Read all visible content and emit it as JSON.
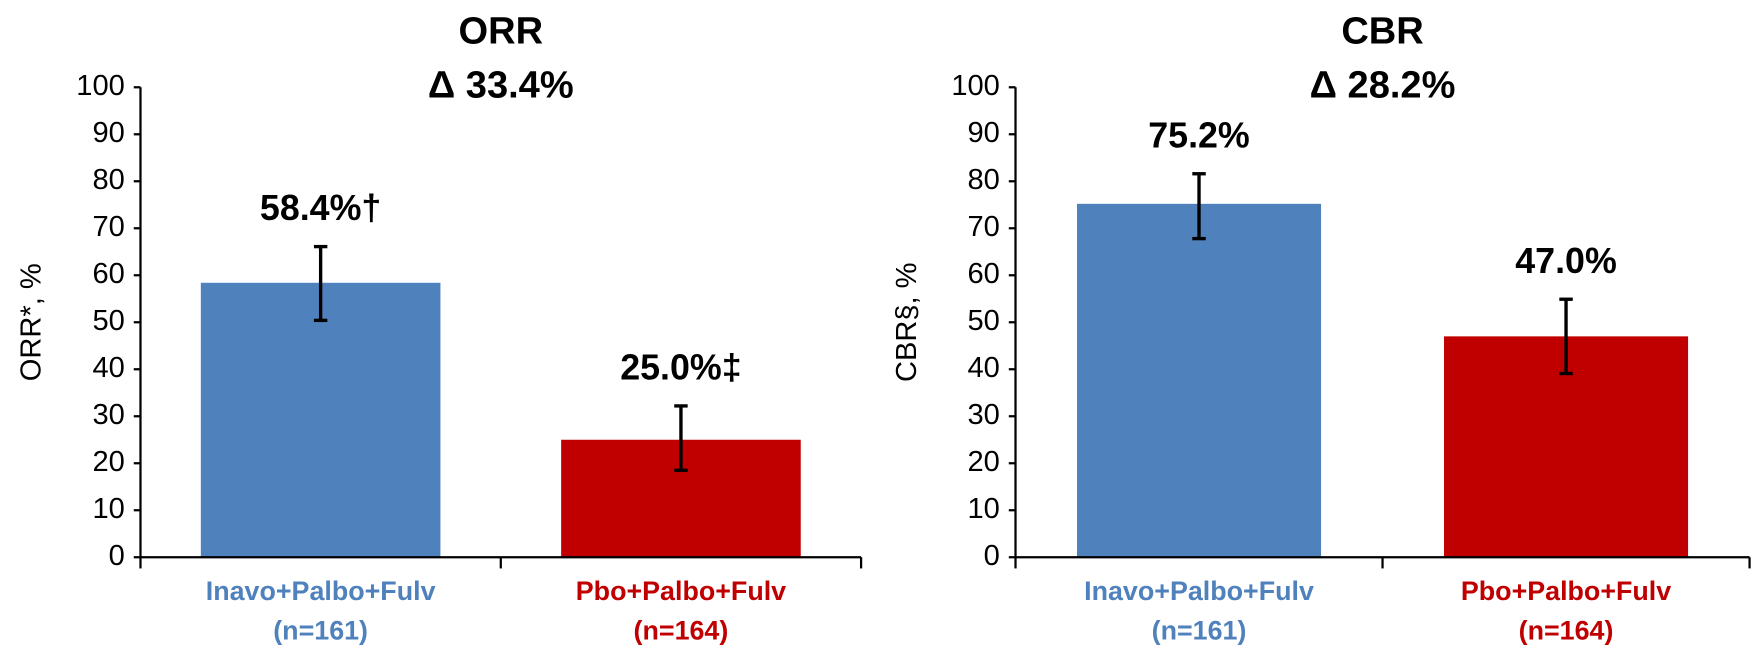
{
  "chart_data": [
    {
      "type": "bar",
      "title": "ORR",
      "subtitle": "Δ 33.4%",
      "y_label": "ORR*, %",
      "categories": [
        "Inavo+Palbo+Fulv",
        "Pbo+Palbo+Fulv"
      ],
      "n_labels": [
        "(n=161)",
        "(n=164)"
      ],
      "values": [
        58.4,
        25.0
      ],
      "value_labels": [
        "58.4%†",
        "25.0%‡"
      ],
      "ci_low": [
        50.4,
        18.5
      ],
      "ci_high": [
        66.1,
        32.2
      ],
      "colors": [
        "#4f81bd",
        "#c00000"
      ],
      "ylim": [
        0,
        100
      ],
      "yticks": [
        0,
        10,
        20,
        30,
        40,
        50,
        60,
        70,
        80,
        90,
        100
      ]
    },
    {
      "type": "bar",
      "title": "CBR",
      "subtitle": "Δ 28.2%",
      "y_label": "CBR§, %",
      "categories": [
        "Inavo+Palbo+Fulv",
        "Pbo+Palbo+Fulv"
      ],
      "n_labels": [
        "(n=161)",
        "(n=164)"
      ],
      "values": [
        75.2,
        47.0
      ],
      "value_labels": [
        "75.2%",
        "47.0%"
      ],
      "ci_low": [
        67.8,
        39.1
      ],
      "ci_high": [
        81.6,
        54.9
      ],
      "colors": [
        "#4f81bd",
        "#c00000"
      ],
      "ylim": [
        0,
        100
      ],
      "yticks": [
        0,
        10,
        20,
        30,
        40,
        50,
        60,
        70,
        80,
        90,
        100
      ]
    }
  ]
}
